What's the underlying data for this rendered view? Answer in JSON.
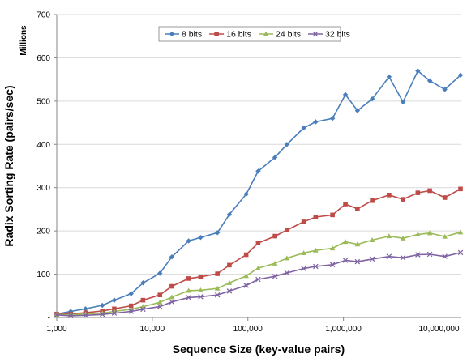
{
  "chart_data": {
    "type": "line",
    "xscale": "log",
    "xlim": [
      1000,
      16777216
    ],
    "ylim": [
      0,
      700
    ],
    "yticks": [
      0,
      100,
      200,
      300,
      400,
      500,
      600,
      700
    ],
    "ytick_labels": [
      "-",
      "100",
      "200",
      "300",
      "400",
      "500",
      "600",
      "700"
    ],
    "xticks": [
      1000,
      10000,
      100000,
      1000000,
      10000000
    ],
    "xtick_labels": [
      "1,000",
      "10,000",
      "100,000",
      "1,000,000",
      "10,000,000"
    ],
    "ylabel": "Radix Sorting Rate (pairs/sec)",
    "xlabel": "Sequence Size (key-value pairs)",
    "yunit": "Millions",
    "legend_position": "top-center",
    "grid": "horizontal",
    "x": [
      1000,
      1400,
      2000,
      3000,
      4000,
      6000,
      8000,
      12000,
      16000,
      24000,
      32000,
      48000,
      64000,
      96000,
      128000,
      192000,
      256000,
      384000,
      512000,
      768000,
      1048576,
      1400000,
      2000000,
      3000000,
      4200000,
      6000000,
      8000000,
      11500000,
      16777216
    ],
    "series": [
      {
        "name": "8 bits",
        "color": "#4a7ebb",
        "marker": "diamond",
        "values": [
          8,
          14,
          20,
          28,
          40,
          55,
          80,
          102,
          140,
          177,
          185,
          196,
          238,
          285,
          338,
          370,
          400,
          438,
          452,
          460,
          515,
          478,
          505,
          556,
          498,
          570,
          547,
          527,
          560
        ]
      },
      {
        "name": "16 bits",
        "color": "#be4b48",
        "marker": "square",
        "values": [
          8,
          8,
          11,
          15,
          20,
          27,
          40,
          52,
          72,
          90,
          94,
          101,
          121,
          145,
          172,
          188,
          202,
          221,
          232,
          237,
          262,
          251,
          270,
          283,
          273,
          288,
          293,
          277,
          297
        ]
      },
      {
        "name": "24 bits",
        "color": "#9bbb59",
        "marker": "triangle",
        "values": [
          7,
          6,
          8,
          10,
          14,
          19,
          25,
          35,
          47,
          62,
          63,
          67,
          80,
          96,
          114,
          125,
          137,
          149,
          155,
          160,
          175,
          169,
          179,
          188,
          183,
          192,
          195,
          187,
          197
        ]
      },
      {
        "name": "32 bits",
        "color": "#7f63a2",
        "marker": "x",
        "values": [
          6,
          4,
          5,
          7,
          10,
          14,
          19,
          25,
          36,
          46,
          48,
          52,
          61,
          74,
          88,
          95,
          103,
          113,
          118,
          122,
          132,
          129,
          135,
          141,
          138,
          145,
          146,
          141,
          150
        ]
      }
    ]
  }
}
